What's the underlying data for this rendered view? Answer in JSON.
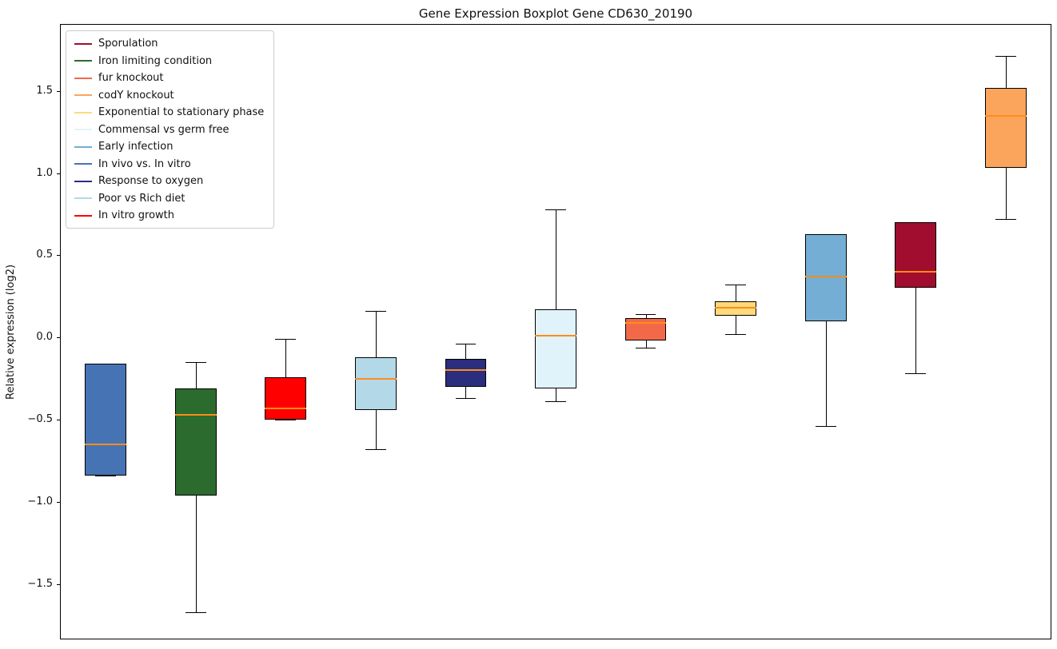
{
  "chart_data": {
    "type": "boxplot",
    "title": "Gene Expression Boxplot Gene CD630_20190",
    "ylabel": "Relative expression (log2)",
    "xlabel": "",
    "ylim": [
      -1.832,
      1.902
    ],
    "yticks": [
      -1.5,
      -1.0,
      -0.5,
      0.0,
      0.5,
      1.0,
      1.5
    ],
    "grid": false,
    "legend_position": "upper left",
    "median_color": "#ff8c1a",
    "legend": [
      {
        "label": "Sporulation",
        "color": "#a10d2e"
      },
      {
        "label": "Iron limiting condition",
        "color": "#2c6b2e"
      },
      {
        "label": "fur knockout",
        "color": "#f2694a"
      },
      {
        "label": "codY knockout",
        "color": "#fba55c"
      },
      {
        "label": "Exponential to stationary phase",
        "color": "#ffd97b"
      },
      {
        "label": "Commensal vs germ free",
        "color": "#e1f3fa"
      },
      {
        "label": "Early infection",
        "color": "#74aed4"
      },
      {
        "label": "In vivo vs. In vitro",
        "color": "#4673b4"
      },
      {
        "label": "Response to oxygen",
        "color": "#2b2d7e"
      },
      {
        "label": "Poor vs Rich diet",
        "color": "#b3d9e8"
      },
      {
        "label": "In vitro growth",
        "color": "#ff0000"
      }
    ],
    "boxes": [
      {
        "label": "In vivo vs. In vitro",
        "color": "#4673b4",
        "whisker_low": -0.84,
        "q1": -0.84,
        "median": -0.65,
        "q3": -0.16,
        "whisker_high": -0.16
      },
      {
        "label": "Iron limiting condition",
        "color": "#2c6b2e",
        "whisker_low": -1.67,
        "q1": -0.96,
        "median": -0.47,
        "q3": -0.31,
        "whisker_high": -0.15
      },
      {
        "label": "In vitro growth",
        "color": "#ff0000",
        "whisker_low": -0.5,
        "q1": -0.5,
        "median": -0.43,
        "q3": -0.24,
        "whisker_high": -0.01
      },
      {
        "label": "Poor vs Rich diet",
        "color": "#b3d9e8",
        "whisker_low": -0.68,
        "q1": -0.44,
        "median": -0.25,
        "q3": -0.12,
        "whisker_high": 0.16
      },
      {
        "label": "Response to oxygen",
        "color": "#2b2d7e",
        "whisker_low": -0.37,
        "q1": -0.3,
        "median": -0.2,
        "q3": -0.13,
        "whisker_high": -0.04
      },
      {
        "label": "Commensal vs germ free",
        "color": "#e1f3fa",
        "whisker_low": -0.39,
        "q1": -0.31,
        "median": 0.01,
        "q3": 0.17,
        "whisker_high": 0.78
      },
      {
        "label": "fur knockout",
        "color": "#f2694a",
        "whisker_low": -0.06,
        "q1": -0.02,
        "median": 0.09,
        "q3": 0.12,
        "whisker_high": 0.14
      },
      {
        "label": "Exponential to stationary phase",
        "color": "#ffd97b",
        "whisker_low": 0.02,
        "q1": 0.13,
        "median": 0.18,
        "q3": 0.22,
        "whisker_high": 0.32
      },
      {
        "label": "Early infection",
        "color": "#74aed4",
        "whisker_low": -0.54,
        "q1": 0.1,
        "median": 0.37,
        "q3": 0.63,
        "whisker_high": 0.63
      },
      {
        "label": "Sporulation",
        "color": "#a10d2e",
        "whisker_low": -0.22,
        "q1": 0.3,
        "median": 0.4,
        "q3": 0.7,
        "whisker_high": 0.7
      },
      {
        "label": "codY knockout",
        "color": "#fba55c",
        "whisker_low": 0.72,
        "q1": 1.03,
        "median": 1.35,
        "q3": 1.52,
        "whisker_high": 1.71
      }
    ]
  }
}
